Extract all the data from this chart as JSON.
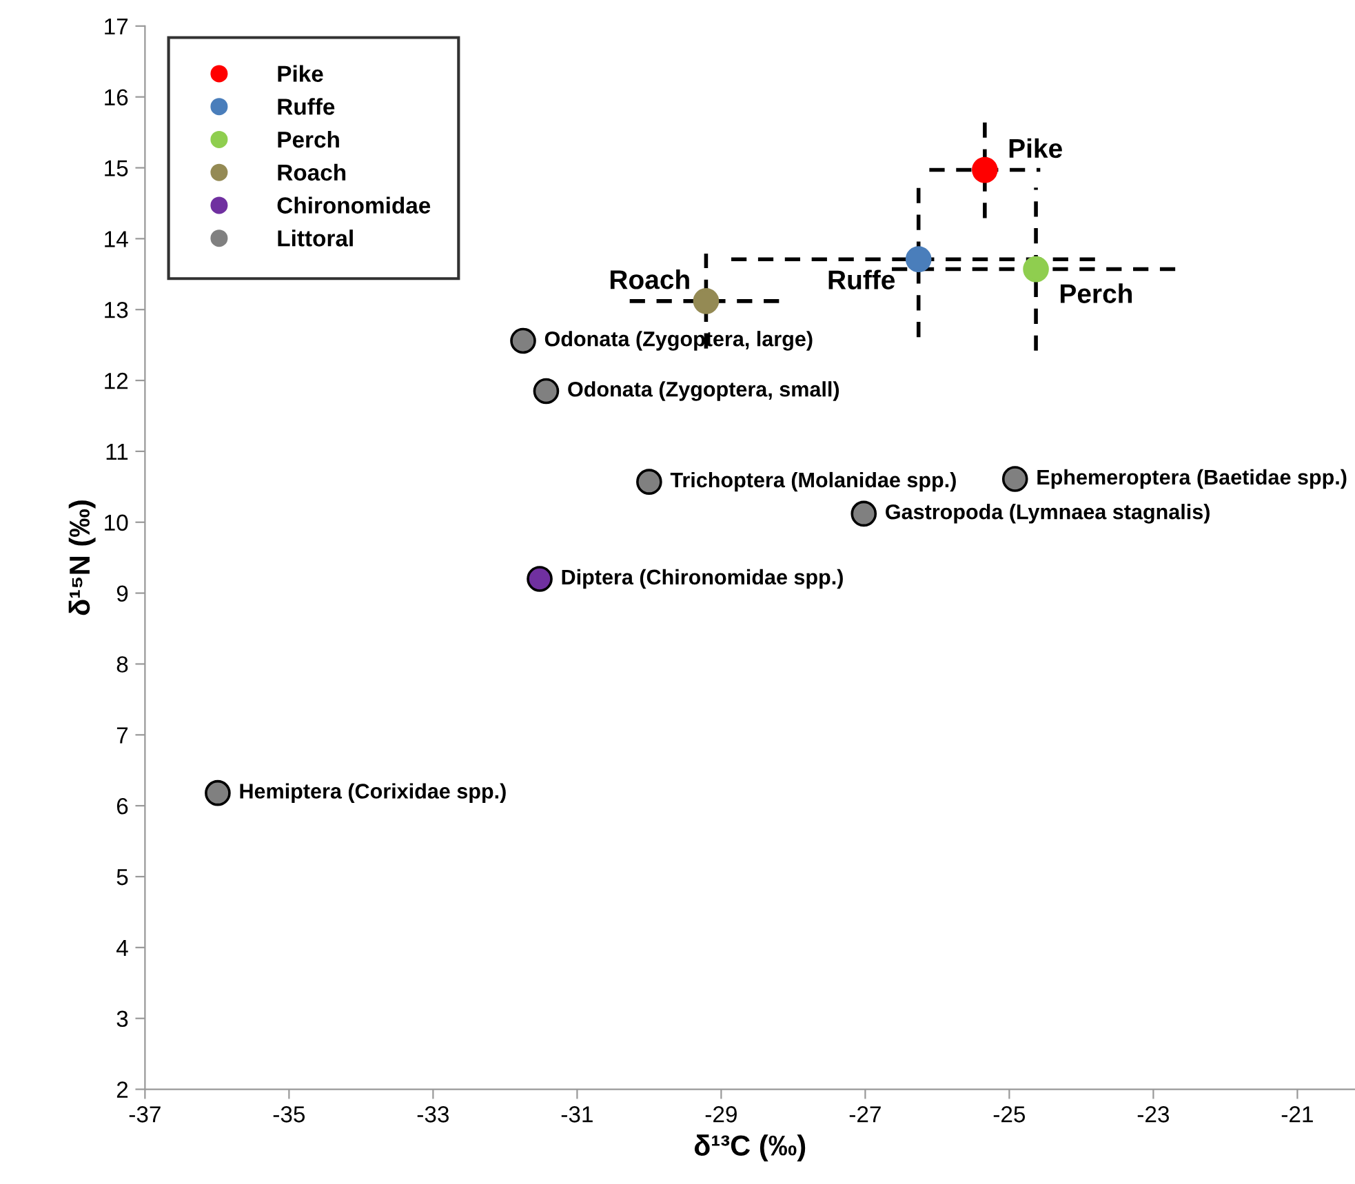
{
  "chart_data": {
    "type": "scatter",
    "xlabel": "δ¹³C (‰)",
    "ylabel": "δ¹⁵N (‰)",
    "xlim": [
      -37,
      -20.2
    ],
    "xticks": [
      -37,
      -35,
      -33,
      -31,
      -29,
      -27,
      -25,
      -23,
      -21
    ],
    "ylim": [
      2,
      17
    ],
    "yticks": [
      2,
      3,
      4,
      5,
      6,
      7,
      8,
      9,
      10,
      11,
      12,
      13,
      14,
      15,
      16,
      17
    ],
    "grid": false,
    "legend": "top left",
    "marker": "circle",
    "line_style": "dashed",
    "series": [
      {
        "name": "Pike",
        "color": "#ff0000",
        "x": [
          -25.34
        ],
        "values": [
          14.97
        ],
        "errors": [
          0.68
        ],
        "xerrors": [
          0.77
        ]
      },
      {
        "name": "Ruffe",
        "color": "#4a7ebb",
        "x": [
          -26.26
        ],
        "values": [
          13.71
        ],
        "errors": [
          1.1
        ],
        "xerrors": [
          2.6
        ]
      },
      {
        "name": "Perch",
        "color": "#8fce4f",
        "x": [
          -24.63
        ],
        "values": [
          13.57
        ],
        "errors": [
          1.15
        ],
        "xerrors": [
          2.0
        ]
      },
      {
        "name": "Roach",
        "color": "#948a54",
        "x": [
          -29.21
        ],
        "values": [
          13.12
        ],
        "errors": [
          0.67
        ],
        "xerrors": [
          1.06
        ]
      },
      {
        "name": "Chironomidae",
        "color": "#7030a0",
        "x": [
          -31.52
        ],
        "values": [
          9.2
        ]
      },
      {
        "name": "Littoral",
        "color": "#808080",
        "x": [
          -31.75,
          -31.43,
          -30.0,
          -27.02,
          -24.92,
          -35.99
        ],
        "values": [
          12.56,
          11.85,
          10.57,
          10.12,
          10.61,
          6.18
        ]
      }
    ],
    "annotations": [
      {
        "text": "Pike",
        "x": -25.34,
        "y": 14.97
      },
      {
        "text": "Ruffe",
        "x": -26.26,
        "y": 13.71
      },
      {
        "text": "Perch",
        "x": -24.63,
        "y": 13.57
      },
      {
        "text": "Roach",
        "x": -29.21,
        "y": 13.12
      },
      {
        "text": "Odonata (Zygoptera, large)",
        "x": -31.75,
        "y": 12.56
      },
      {
        "text": "Odonata (Zygoptera, small)",
        "x": -31.43,
        "y": 11.85
      },
      {
        "text": "Trichoptera (Molanidae spp.)",
        "x": -30.0,
        "y": 10.57
      },
      {
        "text": "Gastropoda (Lymnaea stagnalis)",
        "x": -27.02,
        "y": 10.12
      },
      {
        "text": "Ephemeroptera (Baetidae spp.)",
        "x": -24.92,
        "y": 10.61
      },
      {
        "text": "Diptera (Chironomidae spp.)",
        "x": -31.52,
        "y": 9.2
      },
      {
        "text": "Hemiptera (Corixidae spp.)",
        "x": -35.99,
        "y": 6.18
      }
    ]
  }
}
